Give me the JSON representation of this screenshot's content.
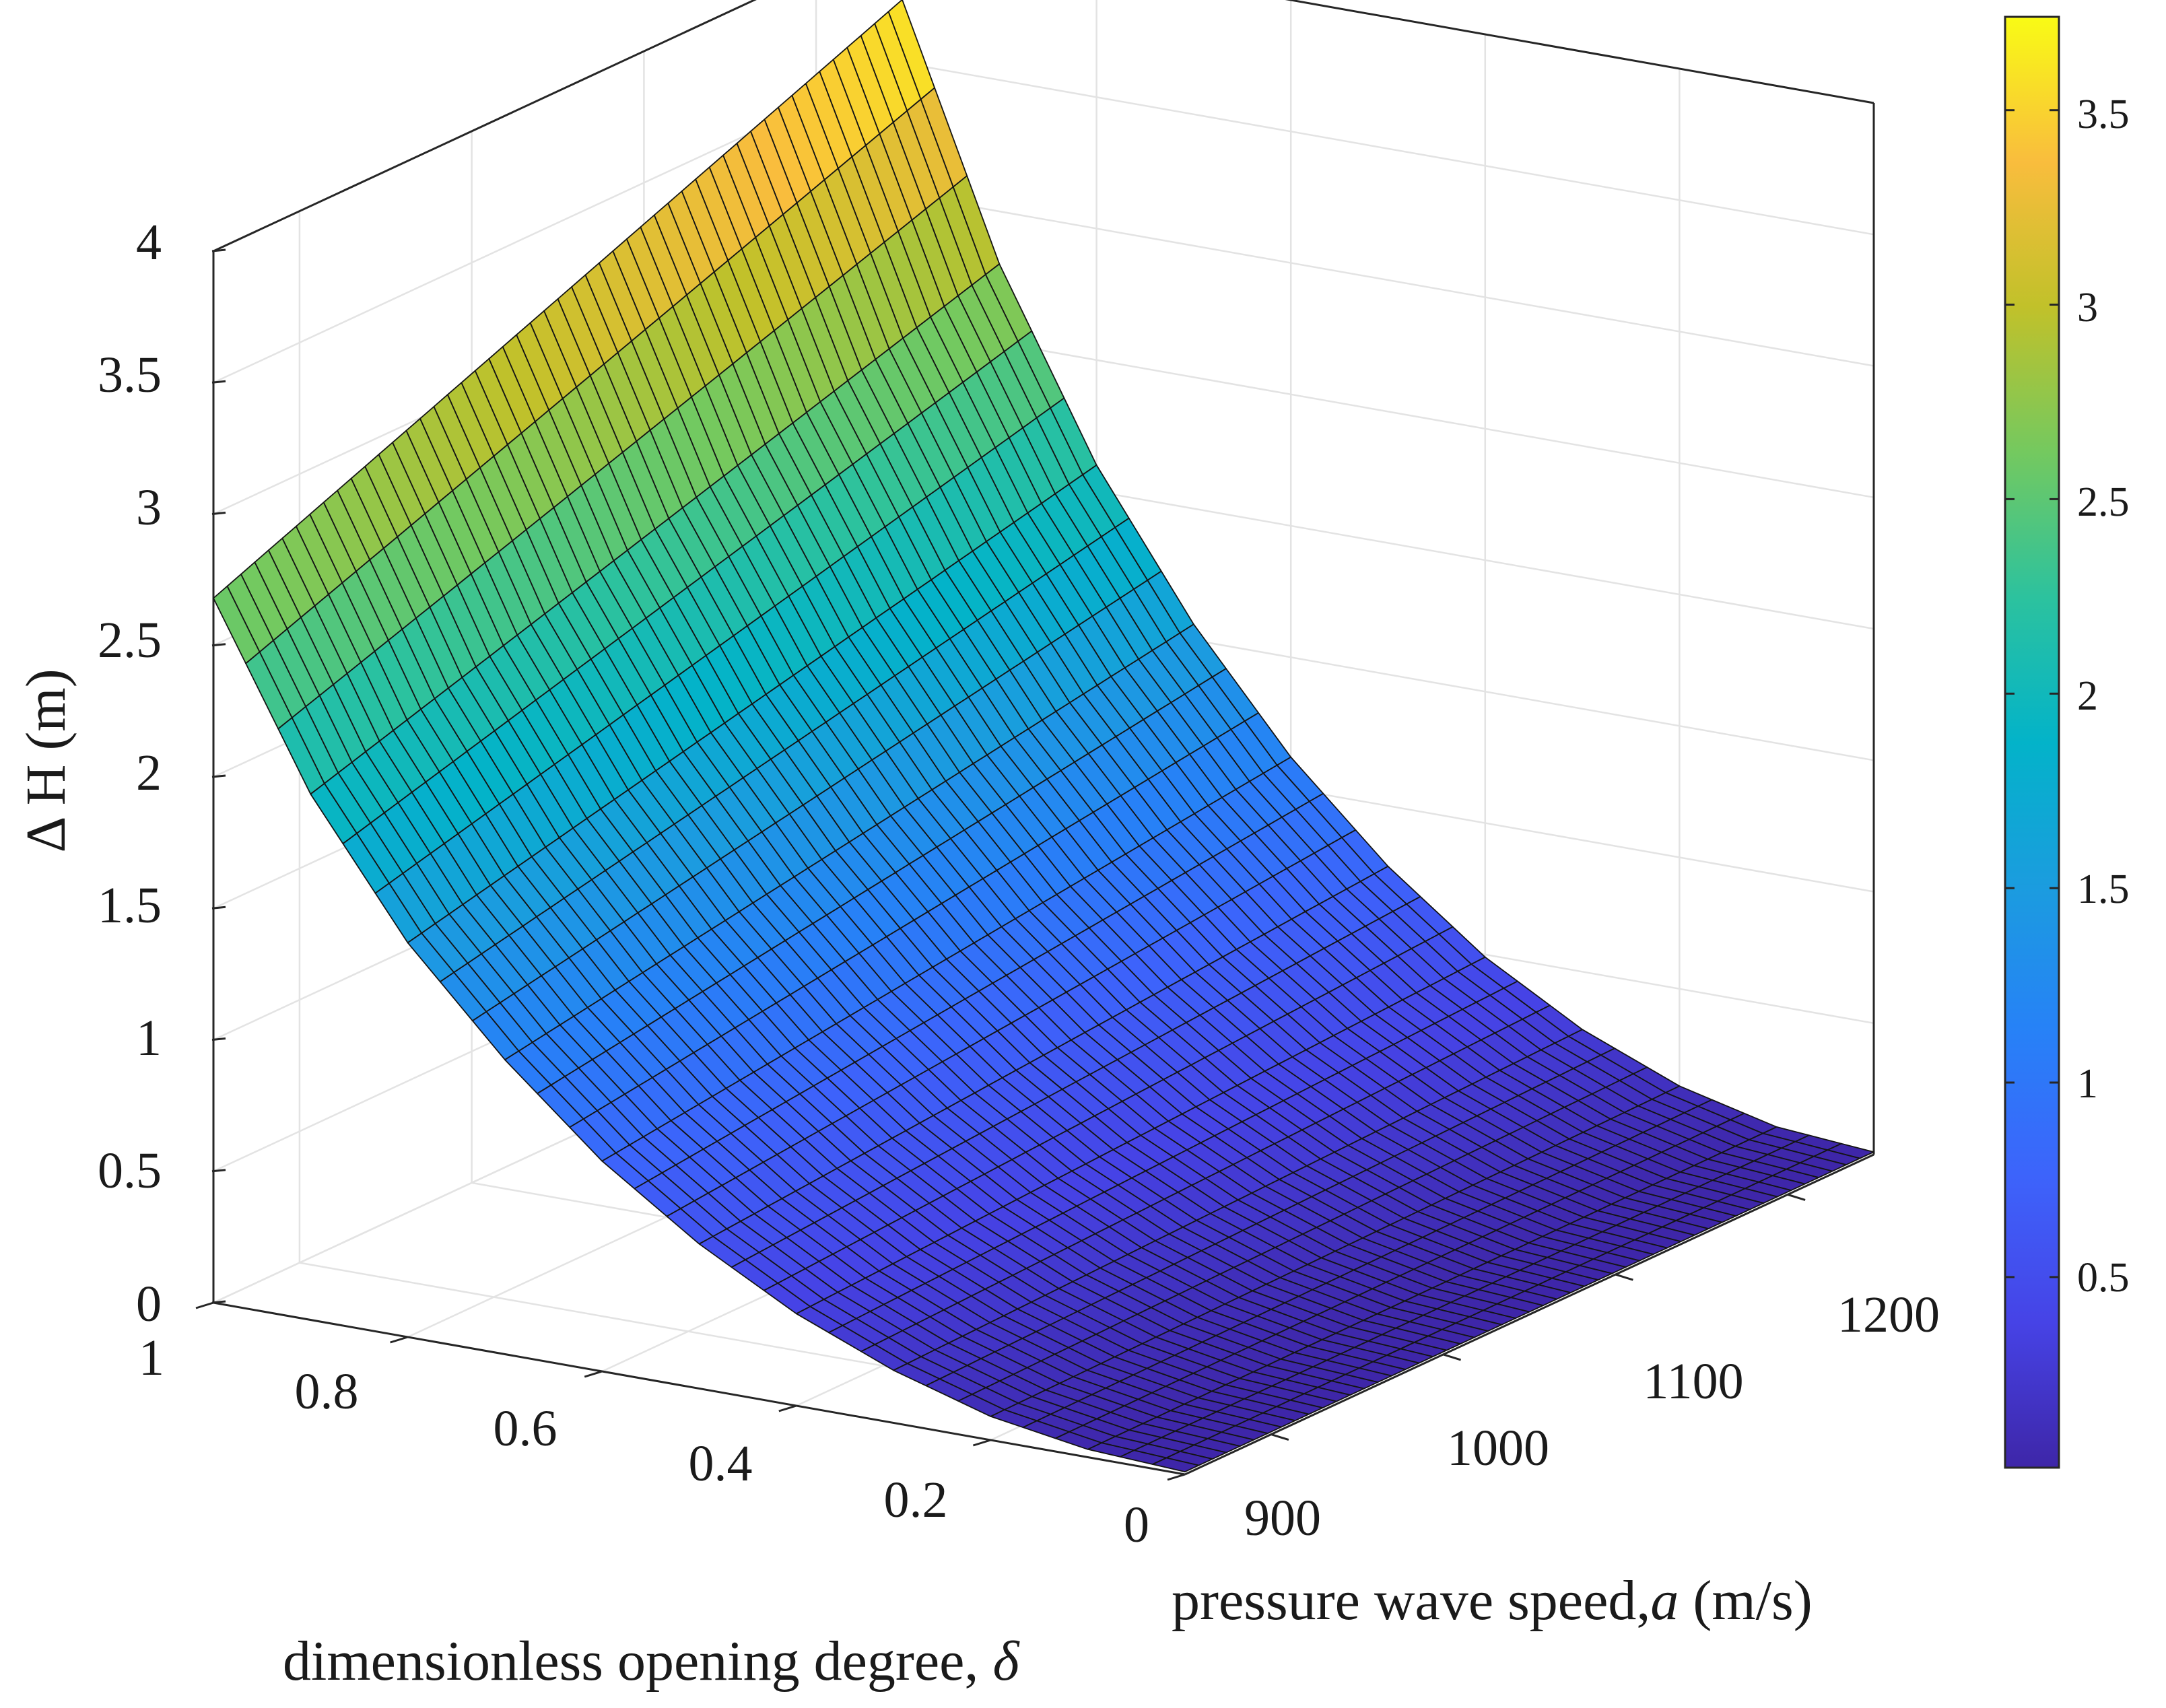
{
  "chart_data": {
    "type": "surface3d",
    "title": "",
    "zlabel": "Δ H (m)",
    "xlabel": "pressure wave speed,",
    "xlabel_var": "a",
    "xlabel_unit": " (m/s)",
    "ylabel": "dimensionless opening degree, ",
    "ylabel_var": "δ",
    "x_range": [
      850,
      1250
    ],
    "x_ticks": [
      900,
      1000,
      1100,
      1200
    ],
    "x_tick_labels": [
      "900",
      "1000",
      "1100",
      "1200"
    ],
    "y_range": [
      0,
      1
    ],
    "y_ticks": [
      1,
      0.8,
      0.6,
      0.4,
      0.2,
      0
    ],
    "y_tick_labels": [
      "1",
      "0.8",
      "0.6",
      "0.4",
      "0.2",
      "0"
    ],
    "z_range": [
      0,
      4
    ],
    "z_ticks": [
      0,
      0.5,
      1,
      1.5,
      2,
      2.5,
      3,
      3.5,
      4
    ],
    "z_tick_labels": [
      "0",
      "0.5",
      "1",
      "1.5",
      "2",
      "2.5",
      "3",
      "3.5",
      "4"
    ],
    "surface_samples": {
      "delta": [
        1.0,
        0.9,
        0.8,
        0.7,
        0.6,
        0.5,
        0.4,
        0.3,
        0.2,
        0.1,
        0.0
      ],
      "dH_at_a_850": [
        2.68,
        2.0,
        1.5,
        1.12,
        0.8,
        0.55,
        0.35,
        0.2,
        0.09,
        0.03,
        0.01
      ],
      "dH_at_a_1250": [
        3.74,
        2.8,
        2.1,
        1.56,
        1.12,
        0.77,
        0.49,
        0.28,
        0.13,
        0.04,
        0.01
      ]
    },
    "grid": true,
    "colormap": "parula",
    "colorbar": {
      "range": [
        0.01,
        3.74
      ],
      "ticks": [
        0.5,
        1,
        1.5,
        2,
        2.5,
        3,
        3.5
      ],
      "tick_labels": [
        "0.5",
        "1",
        "1.5",
        "2",
        "2.5",
        "3",
        "3.5"
      ],
      "placement": "right"
    }
  }
}
